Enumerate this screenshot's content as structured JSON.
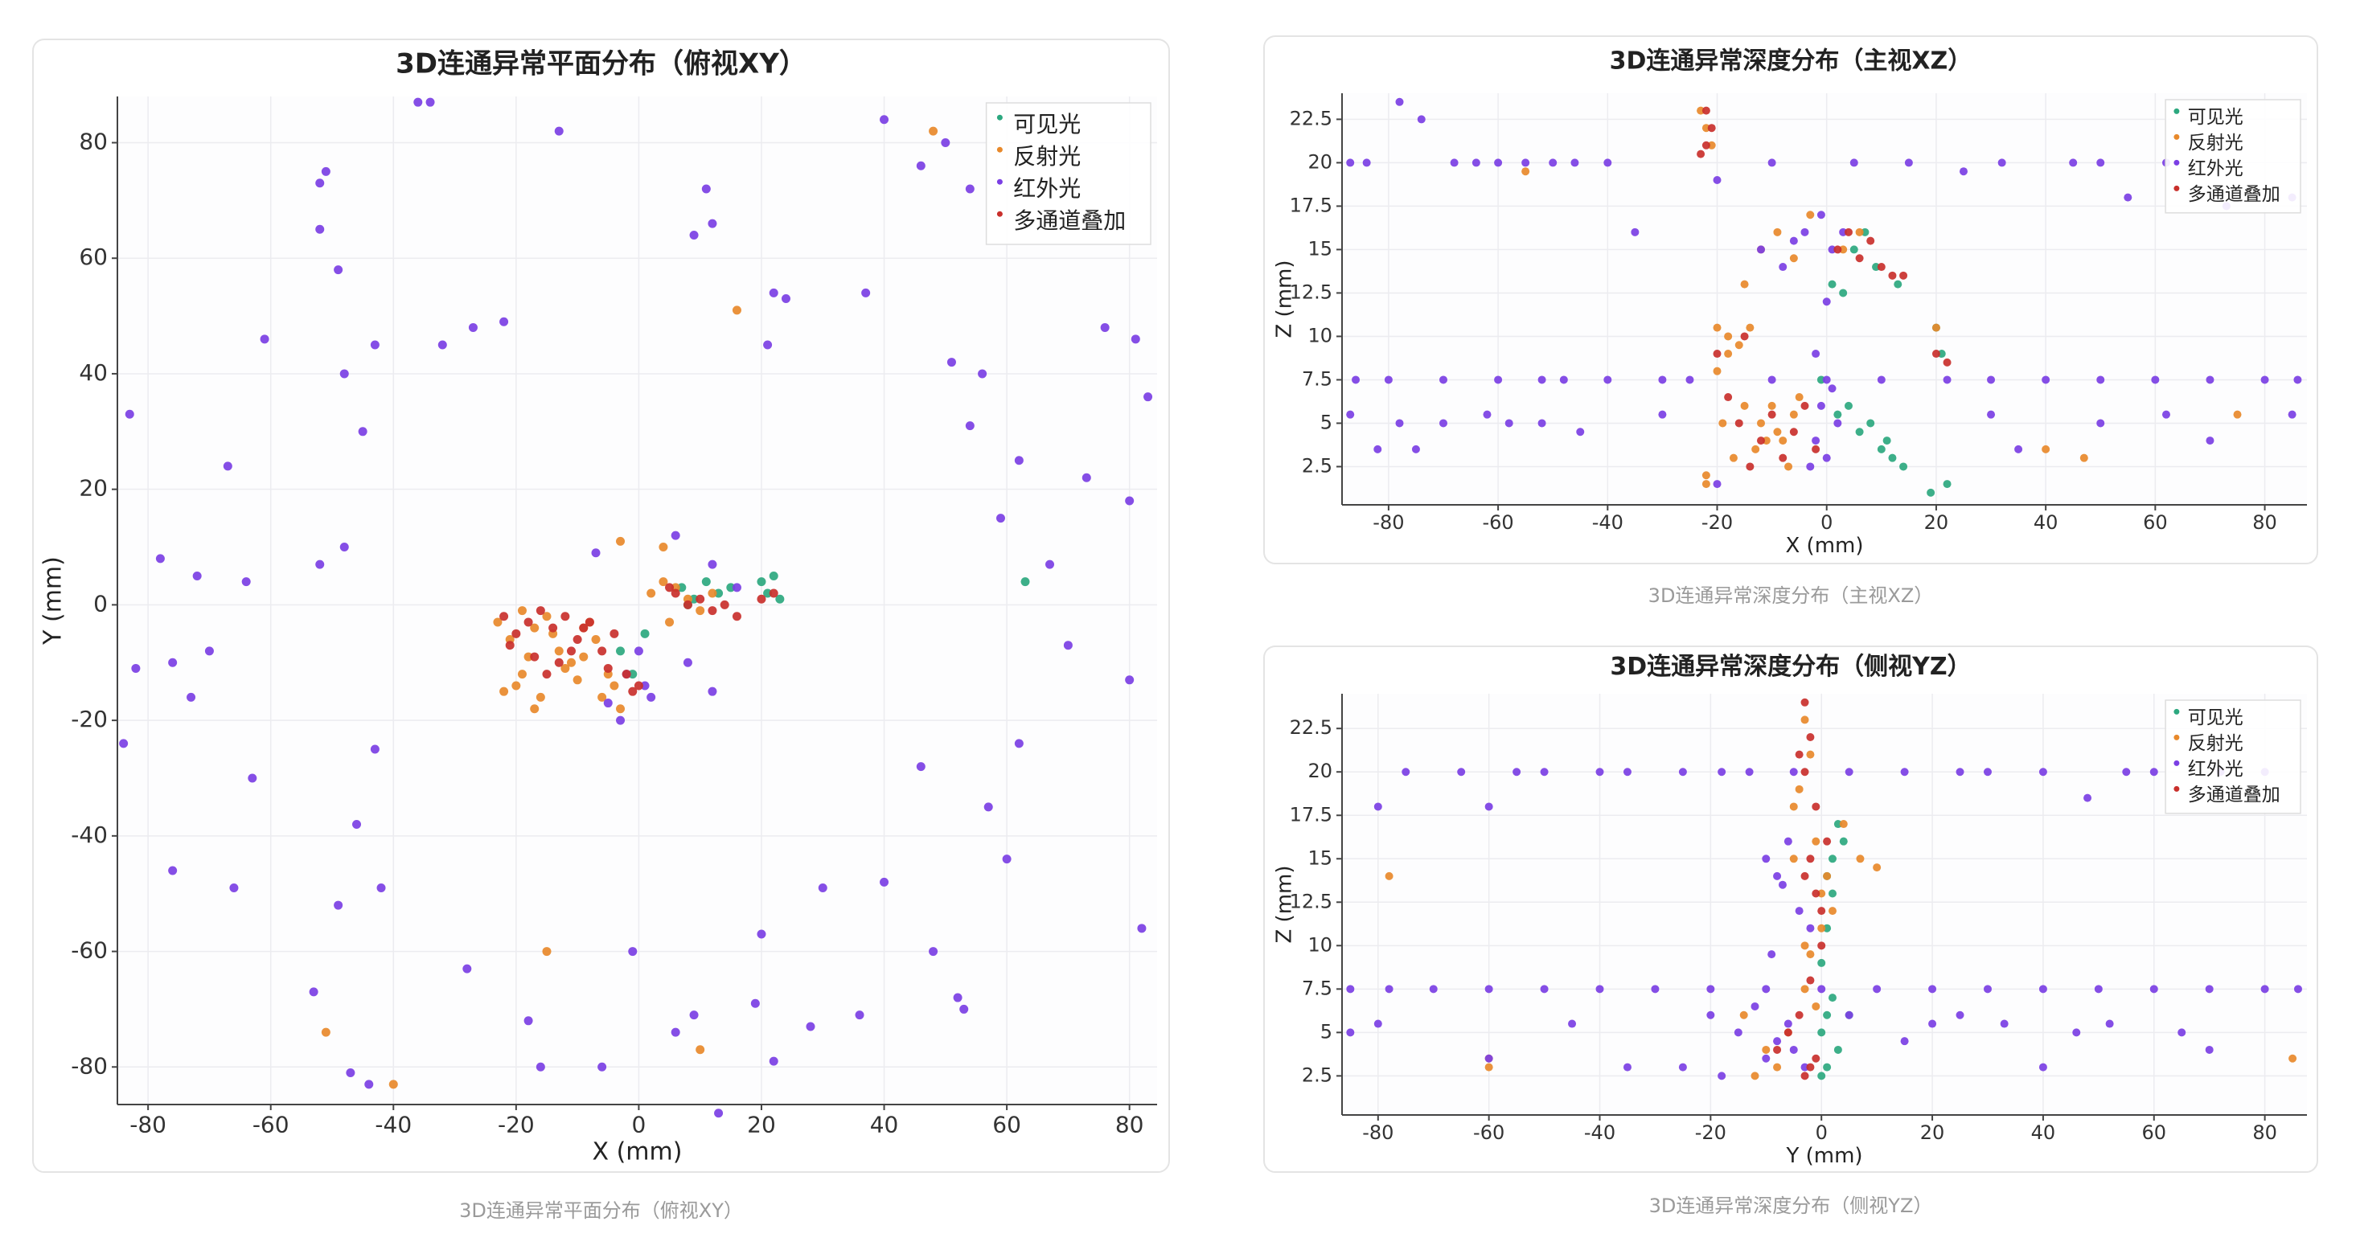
{
  "chart_data": [
    {
      "type": "scatter",
      "title": "3D连通异常平面分布（俯视XY）",
      "caption": "3D连通异常平面分布（俯视XY）",
      "x_label": "X (mm)",
      "y_label": "Y (mm)",
      "xlim": [
        -85,
        84.5
      ],
      "ylim": [
        -86.5,
        88
      ],
      "xticks": [
        -80,
        -60,
        -40,
        -20,
        0,
        20,
        40,
        60,
        80
      ],
      "yticks": [
        -80,
        -60,
        -40,
        -20,
        0,
        20,
        40,
        60,
        80
      ],
      "grid": true,
      "legend": "upper right",
      "series": [
        {
          "name": "可见光",
          "color": "#2ca87f",
          "x": [
            7,
            9,
            11,
            13,
            15,
            20,
            21,
            22,
            23,
            63,
            -3,
            -1,
            1,
            8
          ],
          "values": [
            3,
            1,
            4,
            2,
            3,
            4,
            2,
            5,
            1,
            4,
            -8,
            -12,
            -5,
            0
          ]
        },
        {
          "name": "反射光",
          "color": "#e8892b",
          "x": [
            -23,
            -21,
            -19,
            -17,
            -15,
            -13,
            -11,
            -9,
            -7,
            -5,
            -20,
            -16,
            -12,
            -8,
            -18,
            -14,
            -6,
            -4,
            -19,
            -10,
            -3,
            2,
            4,
            6,
            8,
            10,
            12,
            5,
            16,
            -15,
            -40,
            -51,
            10,
            -3,
            4,
            48,
            -17,
            -22,
            -9
          ],
          "values": [
            -3,
            -6,
            -12,
            -4,
            -2,
            -8,
            -10,
            -4,
            -6,
            -12,
            -14,
            -16,
            -11,
            -3,
            -9,
            -5,
            -16,
            -14,
            -1,
            -13,
            -18,
            2,
            4,
            3,
            1,
            -1,
            2,
            -3,
            51,
            -60,
            -83,
            -74,
            -77,
            11,
            10,
            82,
            -18,
            -15,
            -9
          ]
        },
        {
          "name": "红外光",
          "color": "#7b3fe4",
          "x": [
            -83,
            -78,
            -72,
            -67,
            -64,
            -61,
            -52,
            -51,
            -52,
            -49,
            -43,
            -36,
            -34,
            -32,
            -27,
            -22,
            -13,
            -48,
            -45,
            -52,
            -48,
            -82,
            -76,
            -70,
            -73,
            -84,
            -63,
            -76,
            -66,
            -43,
            -46,
            -49,
            -42,
            -53,
            -47,
            -44,
            -28,
            -18,
            -16,
            -5,
            -2,
            0,
            1,
            -3,
            2,
            8,
            12,
            -7,
            6,
            12,
            16,
            9,
            11,
            12,
            22,
            24,
            21,
            37,
            40,
            46,
            50,
            54,
            56,
            51,
            54,
            62,
            59,
            67,
            76,
            81,
            83,
            73,
            80,
            70,
            80,
            62,
            46,
            57,
            60,
            53,
            48,
            52,
            36,
            28,
            22,
            19,
            9,
            6,
            -1,
            -6,
            30,
            40,
            20,
            13,
            82
          ],
          "values": [
            33,
            8,
            5,
            24,
            4,
            46,
            73,
            75,
            65,
            58,
            45,
            87,
            87,
            45,
            48,
            49,
            82,
            40,
            30,
            7,
            10,
            -11,
            -10,
            -8,
            -16,
            -24,
            -30,
            -46,
            -49,
            -25,
            -38,
            -52,
            -49,
            -67,
            -81,
            -83,
            -63,
            -72,
            -80,
            -17,
            -12,
            -8,
            -14,
            -20,
            -16,
            -10,
            -15,
            9,
            12,
            7,
            3,
            64,
            72,
            66,
            54,
            53,
            45,
            54,
            84,
            76,
            80,
            72,
            40,
            42,
            31,
            25,
            15,
            7,
            48,
            46,
            36,
            22,
            18,
            -7,
            -13,
            -24,
            -28,
            -35,
            -44,
            -70,
            -60,
            -68,
            -71,
            -73,
            -79,
            -69,
            -71,
            -74,
            -60,
            -80,
            -49,
            -48,
            -57,
            -88,
            -56
          ]
        },
        {
          "name": "多通道叠加",
          "color": "#c9302c",
          "x": [
            -22,
            -20,
            -18,
            -16,
            -14,
            -12,
            -10,
            -8,
            -6,
            -4,
            -2,
            -1,
            0,
            -21,
            -17,
            -13,
            -9,
            -5,
            6,
            8,
            10,
            12,
            14,
            16,
            5,
            20,
            22,
            -11,
            -15
          ],
          "values": [
            -2,
            -5,
            -3,
            -1,
            -4,
            -2,
            -6,
            -3,
            -8,
            -5,
            -12,
            -15,
            -14,
            -7,
            -9,
            -10,
            -4,
            -11,
            2,
            0,
            1,
            -1,
            0,
            -2,
            3,
            1,
            2,
            -8,
            -12
          ]
        }
      ]
    },
    {
      "type": "scatter",
      "title": "3D连通异常深度分布（主视XZ）",
      "caption": "3D连通异常深度分布（主视XZ）",
      "x_label": "X (mm)",
      "y_label": "Z (mm)",
      "xlim": [
        -88.5,
        87.7
      ],
      "ylim": [
        0.3,
        24
      ],
      "xticks": [
        -80,
        -60,
        -40,
        -20,
        0,
        20,
        40,
        60,
        80
      ],
      "yticks": [
        2.5,
        5,
        7.5,
        10,
        12.5,
        15,
        17.5,
        20,
        22.5
      ],
      "grid": true,
      "legend": "upper right",
      "series": [
        {
          "name": "可见光",
          "color": "#2ca87f",
          "x": [
            2,
            4,
            6,
            8,
            10,
            12,
            5,
            9,
            13,
            7,
            3,
            11,
            20,
            21,
            22,
            19,
            14,
            -1,
            1
          ],
          "values": [
            5.5,
            6,
            4.5,
            5,
            3.5,
            3,
            15,
            14,
            13,
            16,
            12.5,
            4,
            10.5,
            9,
            1.5,
            1,
            2.5,
            7.5,
            13
          ]
        },
        {
          "name": "反射光",
          "color": "#e8892b",
          "x": [
            -22,
            -21,
            -23,
            -20,
            -18,
            -16,
            -14,
            -12,
            -10,
            -8,
            -6,
            -17,
            -13,
            -9,
            -5,
            -19,
            -15,
            -11,
            -7,
            -22,
            -20,
            -18,
            -15,
            -12,
            -9,
            -6,
            -3,
            3,
            6,
            -55,
            -22,
            40,
            47,
            75,
            20
          ],
          "values": [
            22,
            21,
            23,
            10.5,
            10,
            9.5,
            10.5,
            5,
            6,
            4,
            5.5,
            3,
            3.5,
            4.5,
            6.5,
            5,
            6,
            4,
            2.5,
            1.5,
            8,
            9,
            13,
            15,
            16,
            14.5,
            17,
            15,
            16,
            19.5,
            2,
            3.5,
            3,
            5.5,
            10.5
          ]
        },
        {
          "name": "红外光",
          "color": "#7b3fe4",
          "x": [
            -87,
            -84,
            -78,
            -74,
            -68,
            -64,
            -60,
            -55,
            -50,
            -46,
            -40,
            -35,
            -20,
            -10,
            5,
            15,
            25,
            32,
            45,
            50,
            55,
            62,
            73,
            85,
            -86,
            -80,
            -70,
            -60,
            -52,
            -48,
            -40,
            -30,
            -25,
            -10,
            0,
            10,
            22,
            30,
            40,
            50,
            60,
            70,
            80,
            86,
            -87,
            -78,
            -62,
            -52,
            -30,
            -45,
            -58,
            -70,
            -82,
            30,
            35,
            50,
            62,
            70,
            85,
            -2,
            -1,
            0,
            1,
            -3,
            2,
            -2,
            0,
            -12,
            -8,
            -4,
            -1,
            1,
            3,
            -6,
            -20,
            -75
          ],
          "values": [
            20,
            20,
            23.5,
            22.5,
            20,
            20,
            20,
            20,
            20,
            20,
            20,
            16,
            19,
            20,
            20,
            20,
            19.5,
            20,
            20,
            20,
            18,
            20,
            17.5,
            18,
            7.5,
            7.5,
            7.5,
            7.5,
            7.5,
            7.5,
            7.5,
            7.5,
            7.5,
            7.5,
            7.5,
            7.5,
            7.5,
            7.5,
            7.5,
            7.5,
            7.5,
            7.5,
            7.5,
            7.5,
            5.5,
            5,
            5.5,
            5,
            5.5,
            4.5,
            5,
            5,
            3.5,
            5.5,
            3.5,
            5,
            5.5,
            4,
            5.5,
            4,
            6,
            3,
            7,
            2.5,
            5,
            9,
            12,
            15,
            14,
            16,
            17,
            15,
            16,
            15.5,
            1.5,
            3.5
          ]
        },
        {
          "name": "多通道叠加",
          "color": "#c9302c",
          "x": [
            -22,
            -21,
            -23,
            -22,
            -16,
            -12,
            -8,
            -4,
            -14,
            -10,
            -6,
            -2,
            -18,
            2,
            6,
            10,
            12,
            14,
            8,
            4,
            -20,
            20,
            22,
            -15
          ],
          "values": [
            21,
            22,
            20.5,
            23,
            5,
            4,
            3,
            6,
            2.5,
            5.5,
            4.5,
            3.5,
            6.5,
            15,
            14.5,
            14,
            13.5,
            13.5,
            15.5,
            16,
            9,
            9,
            8.5,
            10
          ]
        }
      ]
    },
    {
      "type": "scatter",
      "title": "3D连通异常深度分布（侧视YZ）",
      "caption": "3D连通异常深度分布（侧视YZ）",
      "x_label": "Y (mm)",
      "y_label": "Z (mm)",
      "xlim": [
        -86.5,
        87.6
      ],
      "ylim": [
        0.25,
        24.5
      ],
      "xticks": [
        -80,
        -60,
        -40,
        -20,
        0,
        20,
        40,
        60,
        80
      ],
      "yticks": [
        2.5,
        5,
        7.5,
        10,
        12.5,
        15,
        17.5,
        20,
        22.5
      ],
      "grid": true,
      "legend": "upper right",
      "series": [
        {
          "name": "可见光",
          "color": "#2ca87f",
          "x": [
            0,
            1,
            2,
            3,
            1,
            2,
            4,
            0,
            1,
            2,
            3,
            0,
            5,
            1
          ],
          "values": [
            5,
            6,
            7,
            4,
            3,
            15,
            16,
            9,
            11,
            13,
            17,
            2.5,
            6,
            14
          ]
        },
        {
          "name": "反射光",
          "color": "#e8892b",
          "x": [
            -78,
            -60,
            -3,
            -2,
            -4,
            -1,
            -5,
            -3,
            -2,
            0,
            1,
            -6,
            -10,
            -14,
            -8,
            -12,
            -3,
            -1,
            2,
            4,
            7,
            10,
            0,
            85,
            -60,
            -5
          ],
          "values": [
            14,
            3.5,
            23,
            21,
            19,
            16,
            15,
            10,
            9.5,
            13,
            14,
            5,
            4,
            6,
            3,
            2.5,
            7.5,
            6.5,
            12,
            17,
            15,
            14.5,
            11,
            3.5,
            3,
            18
          ]
        },
        {
          "name": "红外光",
          "color": "#7b3fe4",
          "x": [
            -80,
            -75,
            -65,
            -60,
            -55,
            -50,
            -40,
            -35,
            -25,
            -18,
            -13,
            -5,
            5,
            15,
            25,
            30,
            40,
            48,
            55,
            60,
            72,
            80,
            -85,
            -78,
            -70,
            -60,
            -50,
            -40,
            -30,
            -20,
            -10,
            0,
            10,
            20,
            30,
            40,
            50,
            60,
            70,
            80,
            86,
            -85,
            -80,
            -60,
            -45,
            -35,
            -25,
            -20,
            -15,
            -10,
            -5,
            -18,
            -12,
            -8,
            -6,
            -3,
            5,
            15,
            20,
            25,
            33,
            40,
            46,
            52,
            65,
            70,
            -10,
            -8,
            -6,
            -4,
            -2,
            -7,
            -9
          ],
          "values": [
            18,
            20,
            20,
            18,
            20,
            20,
            20,
            20,
            20,
            20,
            20,
            20,
            20,
            20,
            20,
            20,
            20,
            18.5,
            20,
            20,
            20,
            20,
            7.5,
            7.5,
            7.5,
            7.5,
            7.5,
            7.5,
            7.5,
            7.5,
            7.5,
            7.5,
            7.5,
            7.5,
            7.5,
            7.5,
            7.5,
            7.5,
            7.5,
            7.5,
            7.5,
            5,
            5.5,
            3.5,
            5.5,
            3,
            3,
            6,
            5,
            3.5,
            4,
            2.5,
            6.5,
            4.5,
            5.5,
            3,
            6,
            4.5,
            5.5,
            6,
            5.5,
            3,
            5,
            5.5,
            5,
            4,
            15,
            14,
            16,
            12,
            11,
            13.5,
            9.5
          ]
        },
        {
          "name": "多通道叠加",
          "color": "#c9302c",
          "x": [
            -3,
            -2,
            -4,
            -3,
            -1,
            -2,
            -3,
            -1,
            0,
            -2,
            -4,
            -6,
            -8,
            -2,
            0,
            1,
            -1,
            -3
          ],
          "values": [
            24,
            22,
            21,
            20,
            18,
            15,
            14,
            13,
            10,
            8,
            6,
            5,
            4,
            3,
            12,
            16,
            3.5,
            2.5
          ]
        }
      ]
    }
  ]
}
